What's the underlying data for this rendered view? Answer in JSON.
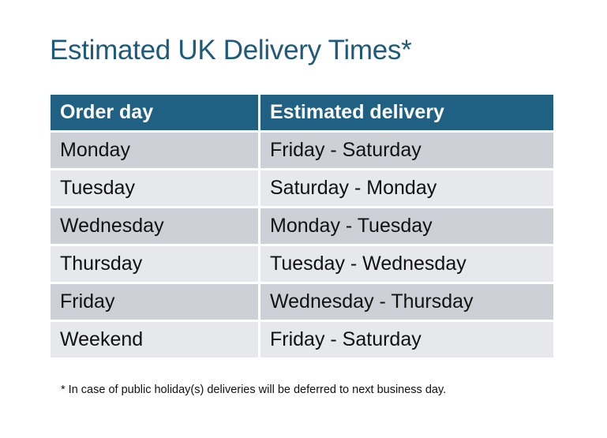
{
  "title": "Estimated UK Delivery Times*",
  "table": {
    "headers": [
      "Order day",
      "Estimated delivery"
    ],
    "rows": [
      [
        "Monday",
        "Friday - Saturday"
      ],
      [
        "Tuesday",
        "Saturday - Monday"
      ],
      [
        "Wednesday",
        "Monday - Tuesday"
      ],
      [
        "Thursday",
        "Tuesday - Wednesday"
      ],
      [
        "Friday",
        "Wednesday - Thursday"
      ],
      [
        "Weekend",
        "Friday - Saturday"
      ]
    ]
  },
  "footnote": "* In case of public holiday(s) deliveries will be deferred to next business day.",
  "colors": {
    "header_bg": "#206082",
    "title": "#1f5a7a",
    "row_dark": "#cdd1d7",
    "row_light": "#e6e8eb"
  }
}
